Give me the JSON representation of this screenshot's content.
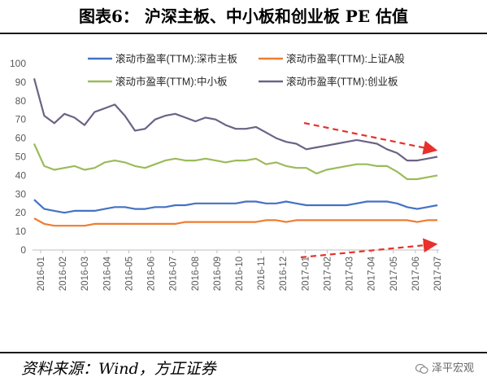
{
  "title": "图表6：  沪深主板、中小板和创业板 PE 估值",
  "source": "资料来源：Wind，方正证券",
  "watermark": "泽平宏观",
  "chart_data": {
    "type": "line",
    "ylim": [
      0,
      100
    ],
    "yticks": [
      0,
      10,
      20,
      30,
      40,
      50,
      60,
      70,
      80,
      90,
      100
    ],
    "xticks": [
      "2016-01",
      "2016-02",
      "2016-03",
      "2016-04",
      "2016-05",
      "2016-06",
      "2016-07",
      "2016-08",
      "2016-09",
      "2016-10",
      "2016-11",
      "2016-12",
      "2017-01",
      "2017-02",
      "2017-03",
      "2017-04",
      "2017-05",
      "2017-06",
      "2017-07"
    ],
    "grid": false,
    "legend": "top, two rows",
    "series": [
      {
        "name": "滚动市盈率(TTM):深市主板",
        "color": "#4472C4",
        "values": [
          27,
          22,
          21,
          20,
          21,
          21,
          21,
          22,
          23,
          23,
          22,
          22,
          23,
          23,
          24,
          24,
          25,
          25,
          25,
          25,
          25,
          26,
          26,
          25,
          25,
          26,
          25,
          24,
          24,
          24,
          24,
          24,
          25,
          26,
          26,
          26,
          25,
          23,
          22,
          23,
          24
        ]
      },
      {
        "name": "滚动市盈率(TTM):上证A股",
        "color": "#ED7D31",
        "values": [
          17,
          14,
          13,
          13,
          13,
          13,
          14,
          14,
          14,
          14,
          14,
          14,
          14,
          14,
          14,
          15,
          15,
          15,
          15,
          15,
          15,
          15,
          15,
          16,
          16,
          15,
          16,
          16,
          16,
          16,
          16,
          16,
          16,
          16,
          16,
          16,
          16,
          16,
          15,
          16,
          16
        ]
      },
      {
        "name": "滚动市盈率(TTM):中小板",
        "color": "#9BBB59",
        "values": [
          57,
          45,
          43,
          44,
          45,
          43,
          44,
          47,
          48,
          47,
          45,
          44,
          46,
          48,
          49,
          48,
          48,
          49,
          48,
          47,
          48,
          48,
          49,
          46,
          47,
          45,
          44,
          44,
          41,
          43,
          44,
          45,
          46,
          46,
          45,
          45,
          42,
          38,
          38,
          39,
          40
        ]
      },
      {
        "name": "滚动市盈率(TTM):创业板",
        "color": "#6C6285",
        "values": [
          92,
          72,
          68,
          73,
          71,
          67,
          74,
          76,
          78,
          72,
          64,
          65,
          70,
          72,
          73,
          71,
          69,
          71,
          70,
          67,
          65,
          65,
          66,
          63,
          60,
          58,
          57,
          54,
          55,
          56,
          57,
          58,
          59,
          58,
          57,
          54,
          52,
          48,
          48,
          49,
          50
        ]
      }
    ],
    "annotations": [
      {
        "type": "dashed-arrow",
        "color": "#E8302A",
        "trend": "down",
        "near_series": "滚动市盈率(TTM):创业板"
      },
      {
        "type": "dashed-arrow",
        "color": "#E8302A",
        "trend": "up",
        "near_series": "滚动市盈率(TTM):上证A股"
      }
    ]
  }
}
